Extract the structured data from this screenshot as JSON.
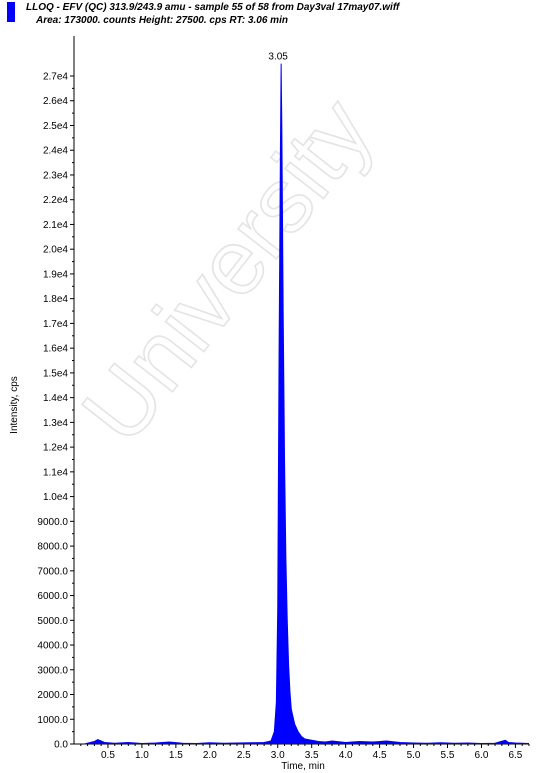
{
  "chart_data": {
    "type": "line",
    "title": "LLOQ - EFV (QC) 313.9/243.9 amu - sample 55 of 58 from Day3val 17may07.wiff",
    "subtitle": "Area: 173000. counts  Height: 27500. cps  RT: 3.06 min",
    "xlabel": "Time, min",
    "ylabel": "Intensity, cps",
    "xlim": [
      0,
      6.7
    ],
    "ylim": [
      0,
      27500
    ],
    "x_ticks": [
      0.5,
      1.0,
      1.5,
      2.0,
      2.5,
      3.0,
      3.5,
      4.0,
      4.5,
      5.0,
      5.5,
      6.0,
      6.5
    ],
    "x_tick_labels": [
      "0.5",
      "1.0",
      "1.5",
      "2.0",
      "2.5",
      "3.0",
      "3.5",
      "4.0",
      "4.5",
      "5.0",
      "5.5",
      "6.0",
      "6.5"
    ],
    "y_ticks": [
      0,
      1000,
      2000,
      3000,
      4000,
      5000,
      6000,
      7000,
      8000,
      9000,
      10000,
      11000,
      12000,
      13000,
      14000,
      15000,
      16000,
      17000,
      18000,
      19000,
      20000,
      21000,
      22000,
      23000,
      24000,
      25000,
      26000,
      27000
    ],
    "y_tick_labels": [
      "0.0",
      "1000.0",
      "2000.0",
      "3000.0",
      "4000.0",
      "5000.0",
      "6000.0",
      "7000.0",
      "8000.0",
      "9000.0",
      "1.0e4",
      "1.1e4",
      "1.2e4",
      "1.3e4",
      "1.4e4",
      "1.5e4",
      "1.6e4",
      "1.7e4",
      "1.8e4",
      "1.9e4",
      "2.0e4",
      "2.1e4",
      "2.2e4",
      "2.3e4",
      "2.4e4",
      "2.5e4",
      "2.6e4",
      "2.7e4"
    ],
    "peak_label": "3.05",
    "series": [
      {
        "color": "#0000ff",
        "x": [
          0.15,
          0.3,
          0.35,
          0.45,
          0.6,
          0.8,
          1.0,
          1.2,
          1.4,
          1.6,
          1.8,
          2.0,
          2.2,
          2.4,
          2.6,
          2.8,
          2.9,
          2.95,
          2.98,
          3.0,
          3.02,
          3.04,
          3.05,
          3.06,
          3.08,
          3.1,
          3.12,
          3.14,
          3.16,
          3.18,
          3.2,
          3.25,
          3.3,
          3.35,
          3.4,
          3.5,
          3.6,
          3.7,
          3.8,
          4.0,
          4.2,
          4.4,
          4.6,
          4.8,
          5.0,
          5.2,
          5.4,
          5.6,
          5.8,
          6.0,
          6.2,
          6.35,
          6.4,
          6.5,
          6.6,
          6.7
        ],
        "y": [
          0,
          100,
          180,
          60,
          30,
          60,
          20,
          40,
          80,
          30,
          20,
          50,
          30,
          40,
          50,
          60,
          120,
          500,
          1700,
          5500,
          16000,
          24200,
          27500,
          25000,
          17500,
          11500,
          7500,
          5000,
          3200,
          2100,
          1400,
          800,
          500,
          300,
          200,
          150,
          100,
          80,
          120,
          60,
          100,
          80,
          120,
          60,
          40,
          30,
          50,
          30,
          40,
          20,
          30,
          150,
          60,
          40,
          30,
          20
        ]
      }
    ],
    "watermark": "University",
    "colors": {
      "series": "#0000ff",
      "axis": "#000000",
      "background": "#ffffff",
      "watermark": "#e4e4e4"
    }
  }
}
